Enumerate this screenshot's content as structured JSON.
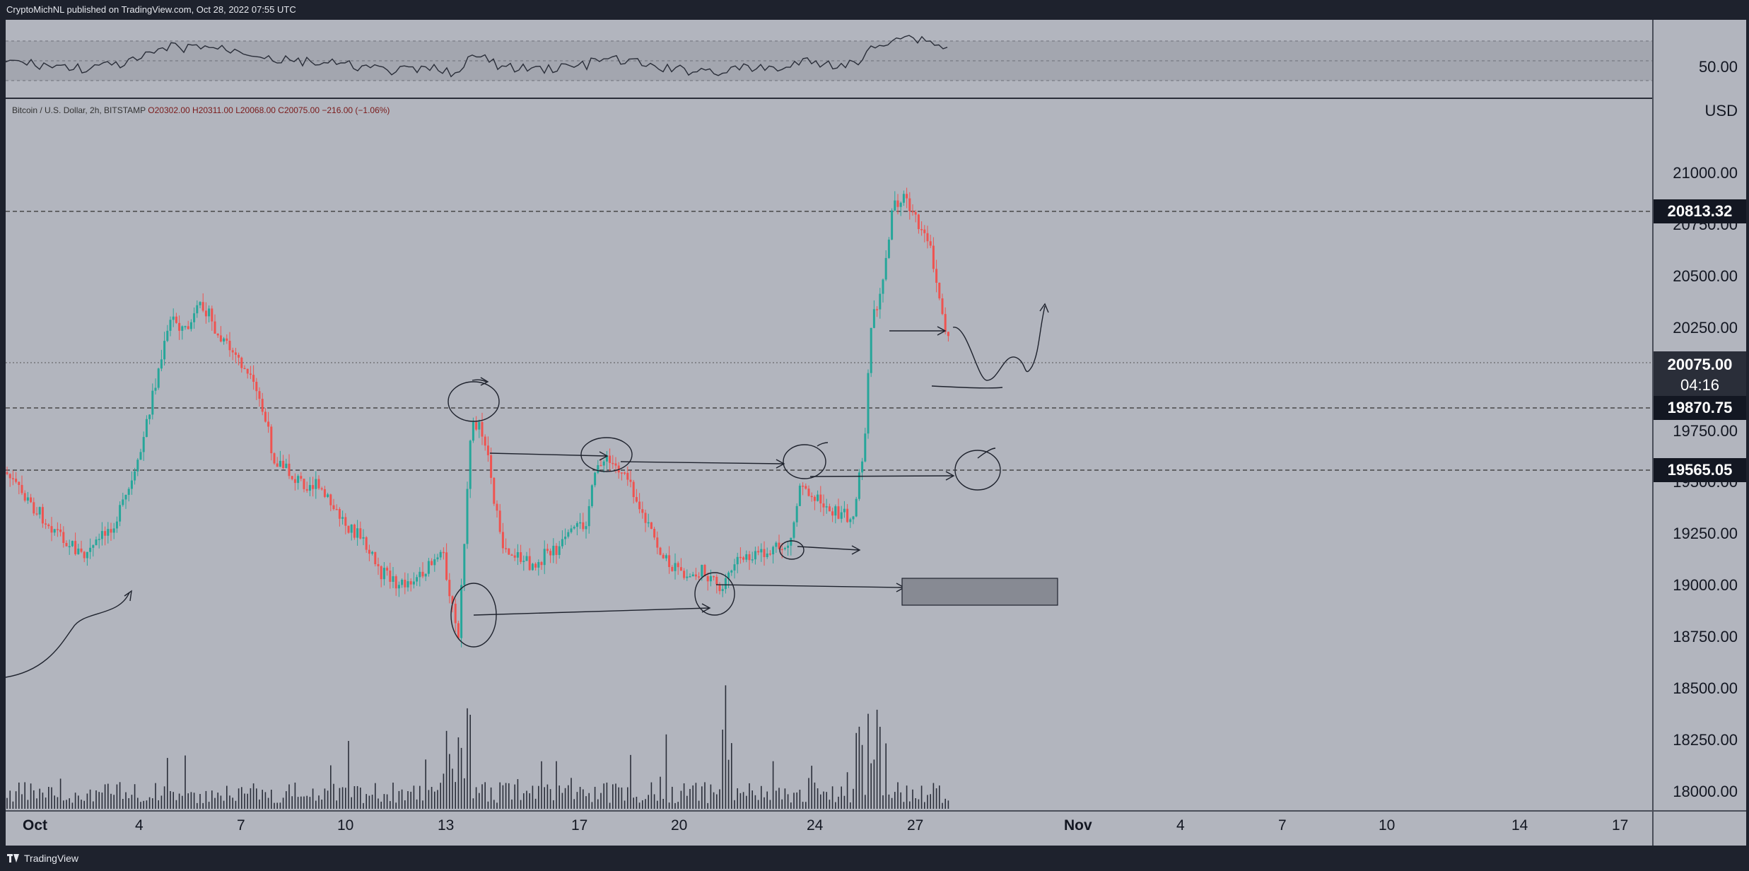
{
  "header": {
    "publisher_line": "CryptoMichNL published on TradingView.com, Oct 28, 2022 07:55 UTC"
  },
  "footer": {
    "brand": "TradingView",
    "brand_icon": "tradingview-logo-icon"
  },
  "oscillator": {
    "level_label": "50.00"
  },
  "legend": {
    "symbol": "Bitcoin / U.S. Dollar, 2h, BITSTAMP",
    "open": "O20302.00",
    "high": "H20311.00",
    "low": "L20068.00",
    "close": "C20075.00",
    "change": "−216.00 (−1.06%)"
  },
  "price_axis": {
    "currency": "USD",
    "ticks": [
      "21000.00",
      "20750.00",
      "20500.00",
      "20250.00",
      "19750.00",
      "19500.00",
      "19250.00",
      "19000.00",
      "18750.00",
      "18500.00",
      "18250.00",
      "18000.00"
    ],
    "badges": {
      "level_high": "20813.32",
      "last_price": "20075.00",
      "countdown": "04:16",
      "level_mid": "19870.75",
      "level_low": "19565.05"
    }
  },
  "time_axis": {
    "ticks": [
      "Oct",
      "4",
      "7",
      "10",
      "13",
      "17",
      "20",
      "24",
      "27",
      "Nov",
      "4",
      "7",
      "10",
      "14",
      "17"
    ]
  },
  "colors": {
    "up": "#26a69a",
    "down": "#ef5350",
    "background": "#b2b5be",
    "toolbar": "#1e222d"
  }
}
